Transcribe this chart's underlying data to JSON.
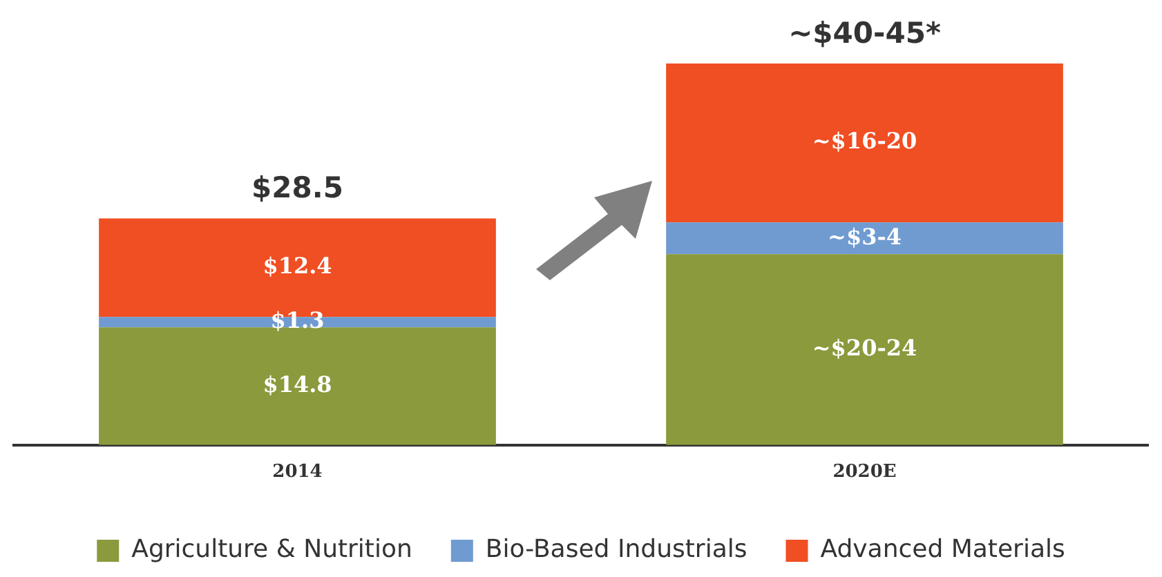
{
  "chart_data": {
    "type": "bar",
    "stacked": true,
    "categories": [
      "2014",
      "2020E"
    ],
    "series": [
      {
        "name": "Agriculture & Nutrition",
        "color": "#8a9a3c",
        "values": [
          14.8,
          24
        ],
        "value_labels": [
          "$14.8",
          "~$20-24"
        ]
      },
      {
        "name": "Bio-Based Industrials",
        "color": "#6f9bd1",
        "values": [
          1.3,
          4
        ],
        "value_labels": [
          "$1.3",
          "~$3-4"
        ]
      },
      {
        "name": "Advanced Materials",
        "color": "#f04e23",
        "values": [
          12.4,
          20
        ],
        "value_labels": [
          "$12.4",
          "~$16-20"
        ]
      }
    ],
    "totals": [
      "$28.5",
      "~$40-45*"
    ],
    "legend": "bottom",
    "grid": false
  }
}
